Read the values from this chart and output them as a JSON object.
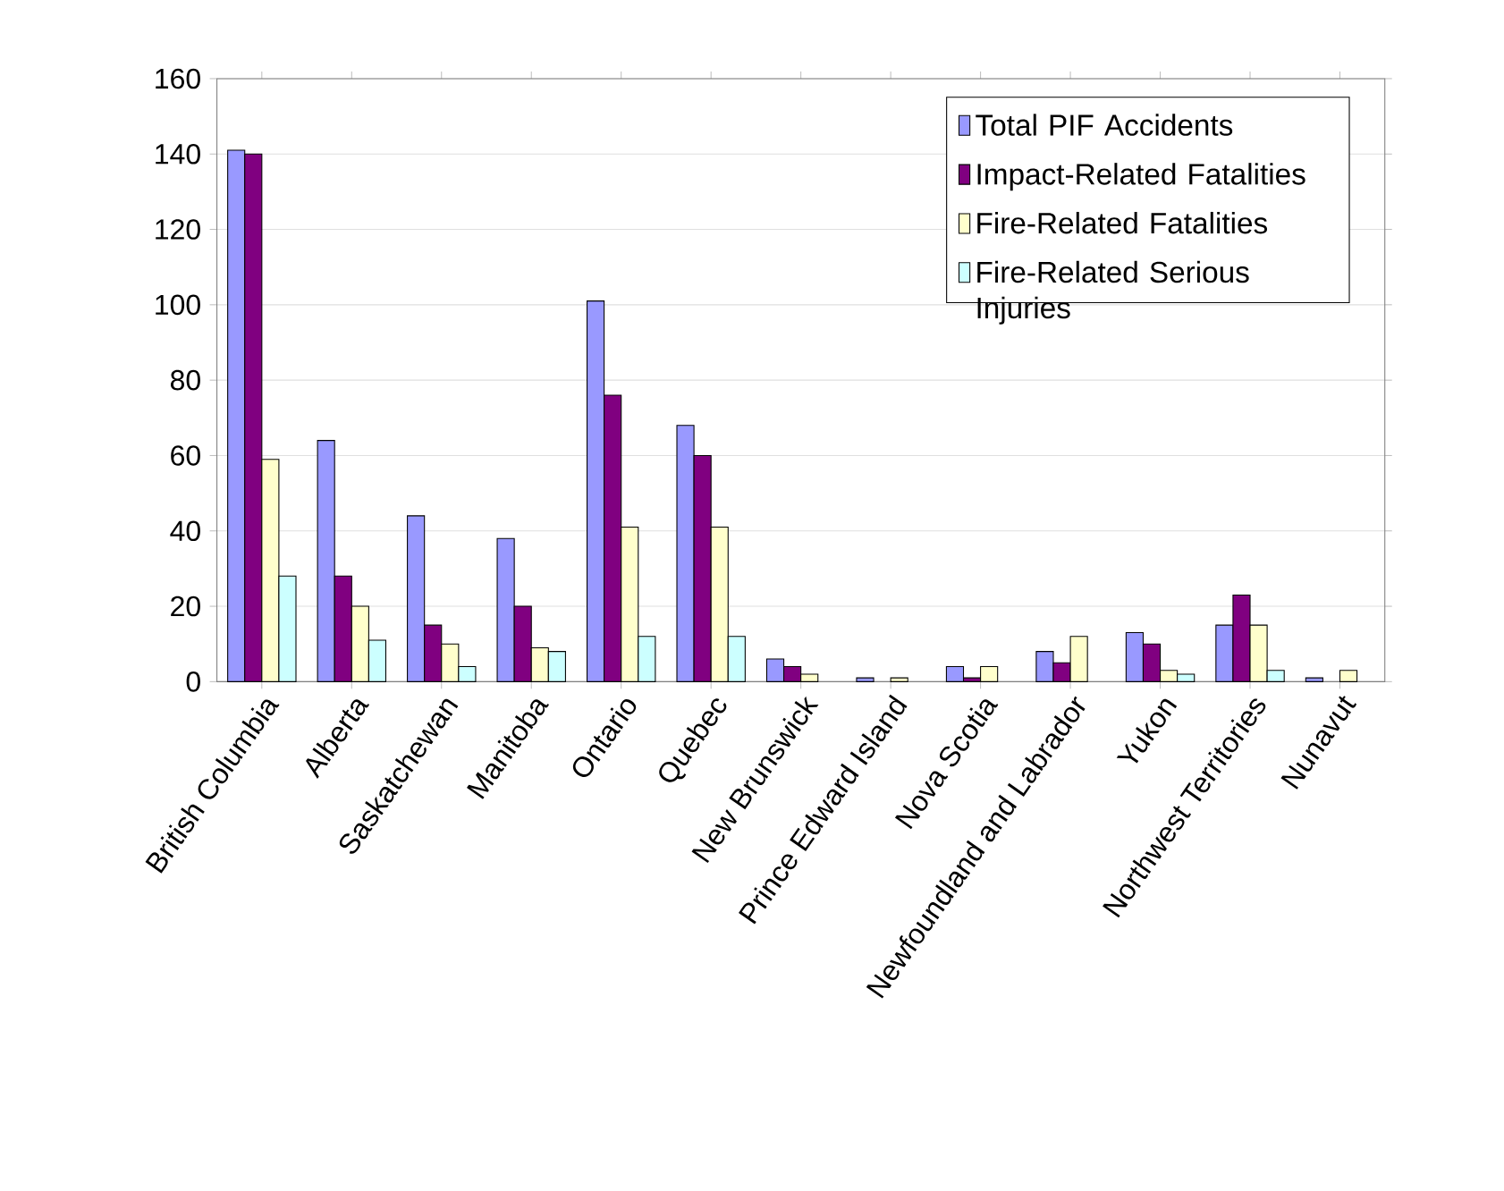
{
  "chart_data": {
    "type": "bar",
    "categories": [
      "British Columbia",
      "Alberta",
      "Saskatchewan",
      "Manitoba",
      "Ontario",
      "Quebec",
      "New Brunswick",
      "Prince Edward Island",
      "Nova Scotia",
      "Newfoundland and Labrador",
      "Yukon",
      "Northwest Territories",
      "Nunavut"
    ],
    "series": [
      {
        "name": "Total PIF Accidents",
        "color": "#9999ff",
        "values": [
          141,
          64,
          44,
          38,
          101,
          68,
          6,
          1,
          4,
          8,
          13,
          15,
          1
        ]
      },
      {
        "name": "Impact-Related Fatalities",
        "color": "#800080",
        "values": [
          140,
          28,
          15,
          20,
          76,
          60,
          4,
          null,
          1,
          5,
          10,
          23,
          null
        ]
      },
      {
        "name": "Fire-Related Fatalities",
        "color": "#ffffcc",
        "values": [
          59,
          20,
          10,
          9,
          41,
          41,
          2,
          1,
          4,
          12,
          3,
          15,
          3
        ]
      },
      {
        "name": "Fire-Related Serious Injuries",
        "color": "#ccffff",
        "values": [
          28,
          11,
          4,
          8,
          12,
          12,
          null,
          null,
          null,
          null,
          2,
          3,
          null
        ]
      }
    ],
    "ylim": [
      0,
      160
    ],
    "yticks": [
      0,
      20,
      40,
      60,
      80,
      100,
      120,
      140,
      160
    ],
    "grid": "y",
    "legend": "top right"
  }
}
